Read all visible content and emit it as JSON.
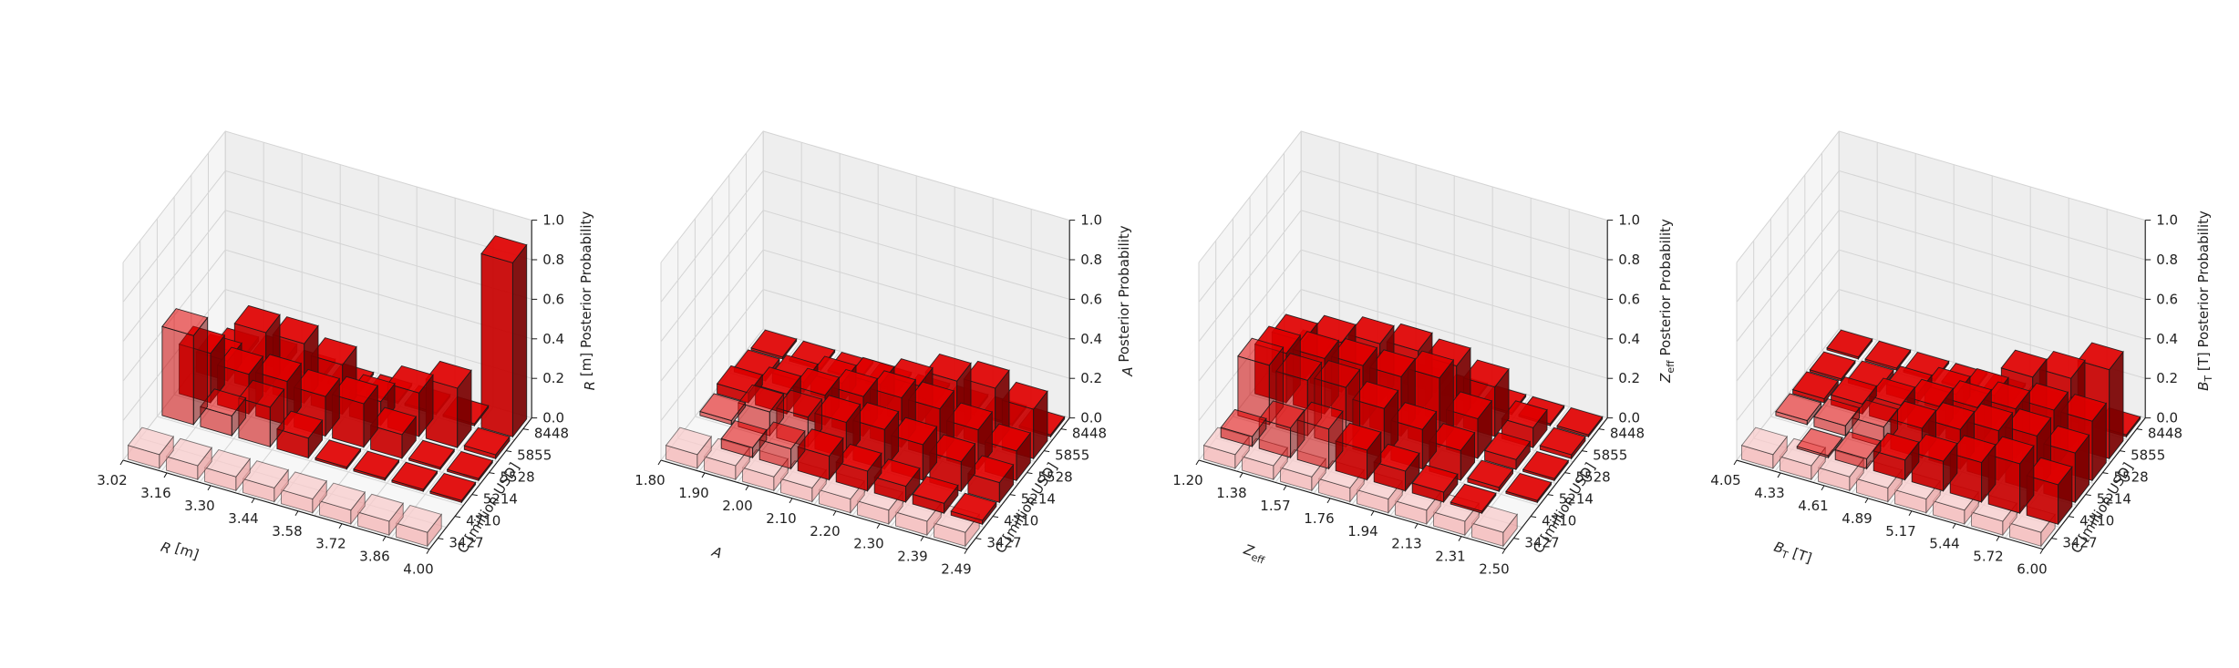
{
  "figure": {
    "colors": {
      "bar": "#e00000",
      "bar_shade": "#a00000",
      "bar_dark": "#7a0000",
      "prior": "#f4b4b4",
      "pane_side": "#f5f5f5",
      "pane_back": "#eeeeee",
      "pane_floor": "#f7f7f7"
    }
  },
  "chart_data": [
    {
      "type": "bar3d",
      "xlabel_main": "R",
      "xlabel_unit": " [m]",
      "xlabel_sub": "",
      "ylabel": "C [million USD]",
      "zlabel_sym": "R",
      "zlabel_sub": "",
      "zlabel_unit": " [m] Posterior Probability",
      "x_ticks": [
        "3.02",
        "3.16",
        "3.30",
        "3.44",
        "3.58",
        "3.72",
        "3.86",
        "4.00"
      ],
      "y_ticks": [
        "3427",
        "4710",
        "5214",
        "5528",
        "5855",
        "8448"
      ],
      "z_ticks": [
        "0.0",
        "0.2",
        "0.4",
        "0.6",
        "0.8",
        "1.0"
      ],
      "zlim": [
        0,
        1
      ],
      "prior": 0.07,
      "posterior": [
        [
          0.0,
          0.0,
          0.45,
          0.25,
          0.1,
          0.02
        ],
        [
          0.0,
          0.0,
          0.1,
          0.2,
          0.3,
          0.04
        ],
        [
          0.0,
          0.0,
          0.2,
          0.22,
          0.3,
          0.02
        ],
        [
          0.0,
          0.0,
          0.1,
          0.2,
          0.25,
          0.01
        ],
        [
          0.0,
          0.0,
          0.01,
          0.22,
          0.12,
          0.01
        ],
        [
          0.0,
          0.0,
          0.01,
          0.12,
          0.22,
          0.01
        ],
        [
          0.0,
          0.0,
          0.01,
          0.01,
          0.3,
          0.01
        ],
        [
          0.0,
          0.0,
          0.01,
          0.01,
          0.02,
          0.88
        ]
      ]
    },
    {
      "type": "bar3d",
      "xlabel_main": "A",
      "xlabel_unit": "",
      "xlabel_sub": "",
      "ylabel": "C [million USD]",
      "zlabel_sym": "A",
      "zlabel_sub": "",
      "zlabel_unit": " Posterior Probability",
      "x_ticks": [
        "1.80",
        "1.90",
        "2.00",
        "2.10",
        "2.20",
        "2.30",
        "2.39",
        "2.49"
      ],
      "y_ticks": [
        "3427",
        "4710",
        "5214",
        "5528",
        "5855",
        "8448"
      ],
      "z_ticks": [
        "0.0",
        "0.2",
        "0.4",
        "0.6",
        "0.8",
        "1.0"
      ],
      "zlim": [
        0,
        1
      ],
      "prior": 0.07,
      "posterior": [
        [
          0.0,
          0.0,
          0.02,
          0.05,
          0.02,
          0.01
        ],
        [
          0.0,
          0.05,
          0.12,
          0.1,
          0.05,
          0.01
        ],
        [
          0.0,
          0.1,
          0.15,
          0.15,
          0.1,
          0.01
        ],
        [
          0.0,
          0.12,
          0.18,
          0.2,
          0.15,
          0.01
        ],
        [
          0.0,
          0.1,
          0.2,
          0.25,
          0.2,
          0.01
        ],
        [
          0.0,
          0.08,
          0.18,
          0.25,
          0.28,
          0.01
        ],
        [
          0.0,
          0.05,
          0.15,
          0.2,
          0.3,
          0.01
        ],
        [
          0.0,
          0.02,
          0.1,
          0.15,
          0.25,
          0.01
        ]
      ]
    },
    {
      "type": "bar3d",
      "xlabel_main": "Z",
      "xlabel_unit": "",
      "xlabel_sub": "eff",
      "ylabel": "C [million USD]",
      "zlabel_sym": "Z",
      "zlabel_sub": "eff",
      "zlabel_unit": " Posterior Probability",
      "x_ticks": [
        "1.20",
        "1.38",
        "1.57",
        "1.76",
        "1.94",
        "2.13",
        "2.31",
        "2.50"
      ],
      "y_ticks": [
        "3427",
        "4710",
        "5214",
        "5528",
        "5855",
        "8448"
      ],
      "z_ticks": [
        "0.0",
        "0.2",
        "0.4",
        "0.6",
        "0.8",
        "1.0"
      ],
      "zlim": [
        0,
        1
      ],
      "prior": 0.07,
      "posterior": [
        [
          0.0,
          0.05,
          0.3,
          0.25,
          0.2,
          0.01
        ],
        [
          0.0,
          0.15,
          0.28,
          0.28,
          0.25,
          0.01
        ],
        [
          0.0,
          0.2,
          0.3,
          0.3,
          0.3,
          0.01
        ],
        [
          0.0,
          0.15,
          0.25,
          0.3,
          0.32,
          0.01
        ],
        [
          0.0,
          0.1,
          0.2,
          0.35,
          0.3,
          0.01
        ],
        [
          0.0,
          0.05,
          0.15,
          0.2,
          0.25,
          0.01
        ],
        [
          0.0,
          0.01,
          0.02,
          0.05,
          0.1,
          0.01
        ],
        [
          0.0,
          0.0,
          0.01,
          0.01,
          0.02,
          0.01
        ]
      ]
    },
    {
      "type": "bar3d",
      "xlabel_main": "B",
      "xlabel_unit": " [T]",
      "xlabel_sub": "T",
      "ylabel": "C [million USD]",
      "zlabel_sym": "B",
      "zlabel_sub": "T",
      "zlabel_unit": " [T] Posterior Probability",
      "x_ticks": [
        "4.05",
        "4.33",
        "4.61",
        "4.89",
        "5.17",
        "5.44",
        "5.72",
        "6.00"
      ],
      "y_ticks": [
        "3427",
        "4710",
        "5214",
        "5528",
        "5855",
        "8448"
      ],
      "z_ticks": [
        "0.0",
        "0.2",
        "0.4",
        "0.6",
        "0.8",
        "1.0"
      ],
      "zlim": [
        0,
        1
      ],
      "prior": 0.07,
      "posterior": [
        [
          0.0,
          0.0,
          0.02,
          0.02,
          0.01,
          0.01
        ],
        [
          0.0,
          0.01,
          0.05,
          0.05,
          0.02,
          0.01
        ],
        [
          0.0,
          0.05,
          0.1,
          0.1,
          0.05,
          0.01
        ],
        [
          0.0,
          0.1,
          0.15,
          0.15,
          0.1,
          0.01
        ],
        [
          0.0,
          0.15,
          0.2,
          0.2,
          0.15,
          0.01
        ],
        [
          0.0,
          0.2,
          0.25,
          0.25,
          0.3,
          0.01
        ],
        [
          0.0,
          0.25,
          0.28,
          0.3,
          0.35,
          0.01
        ],
        [
          0.0,
          0.2,
          0.25,
          0.3,
          0.45,
          0.01
        ]
      ]
    }
  ]
}
